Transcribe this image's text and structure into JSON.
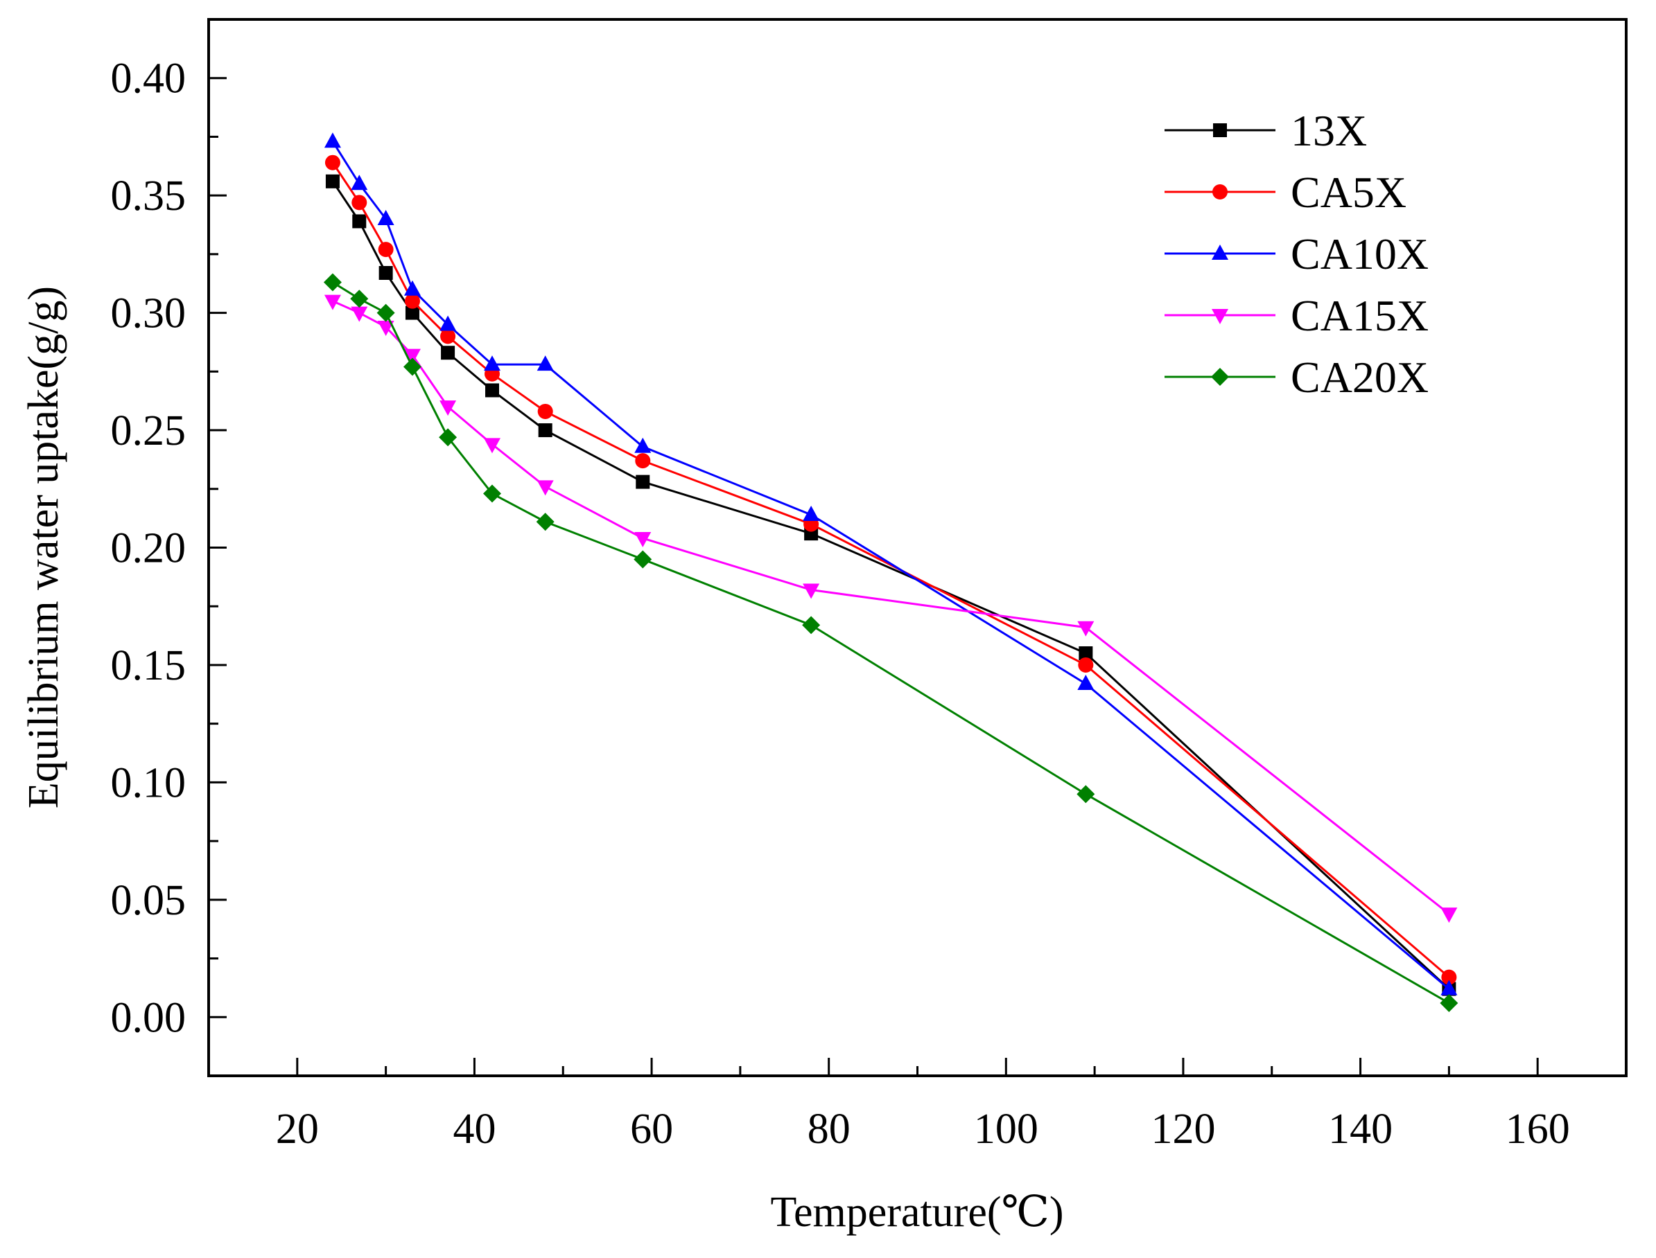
{
  "chart_data": {
    "type": "line",
    "title": "",
    "xlabel": "Temperature(℃)",
    "ylabel": "Equilibrium water uptake(g/g)",
    "xlim": [
      10,
      170
    ],
    "ylim": [
      -0.025,
      0.425
    ],
    "xticks": [
      20,
      40,
      60,
      80,
      100,
      120,
      140,
      160
    ],
    "xtick_labels": [
      "20",
      "40",
      "60",
      "80",
      "100",
      "120",
      "140",
      "160"
    ],
    "yticks": [
      0.0,
      0.05,
      0.1,
      0.15,
      0.2,
      0.25,
      0.3,
      0.35,
      0.4
    ],
    "ytick_labels": [
      "0.00",
      "0.05",
      "0.10",
      "0.15",
      "0.20",
      "0.25",
      "0.30",
      "0.35",
      "0.40"
    ],
    "grid": false,
    "legend_position": "top-right",
    "x": [
      24,
      27,
      30,
      33,
      37,
      42,
      48,
      59,
      78,
      109,
      150
    ],
    "series": [
      {
        "name": "13X",
        "color": "#000000",
        "marker": "square",
        "values": [
          0.356,
          0.339,
          0.317,
          0.3,
          0.283,
          0.267,
          0.25,
          0.228,
          0.206,
          0.155,
          0.012
        ]
      },
      {
        "name": "CA5X",
        "color": "#ff0000",
        "marker": "circle",
        "values": [
          0.364,
          0.347,
          0.327,
          0.305,
          0.29,
          0.274,
          0.258,
          0.237,
          0.21,
          0.15,
          0.017
        ]
      },
      {
        "name": "CA10X",
        "color": "#0000ff",
        "marker": "triangle-up",
        "values": [
          0.373,
          0.355,
          0.34,
          0.31,
          0.295,
          0.278,
          0.278,
          0.243,
          0.214,
          0.142,
          0.012
        ]
      },
      {
        "name": "CA15X",
        "color": "#ff00ff",
        "marker": "triangle-down",
        "values": [
          0.305,
          0.3,
          0.294,
          0.282,
          0.26,
          0.244,
          0.226,
          0.204,
          0.182,
          0.166,
          0.044
        ]
      },
      {
        "name": "CA20X",
        "color": "#008000",
        "marker": "diamond",
        "values": [
          0.313,
          0.306,
          0.3,
          0.277,
          0.247,
          0.223,
          0.211,
          0.195,
          0.167,
          0.095,
          0.006
        ]
      }
    ]
  }
}
